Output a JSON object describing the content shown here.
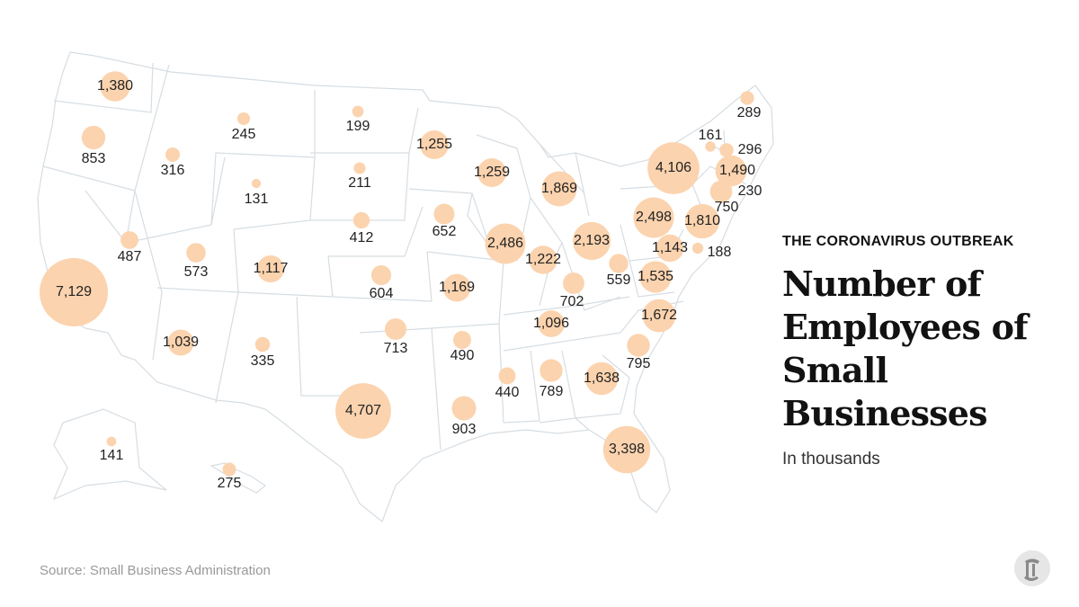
{
  "header": {
    "kicker": "THE CORONAVIRUS OUTBREAK",
    "title": "Number of Employees of Small Businesses",
    "subtitle": "In thousands"
  },
  "footer": {
    "source": "Source: Small Business Administration"
  },
  "colors": {
    "bubble": "#fbd3ae",
    "state_stroke": "#d6dde2",
    "text": "#222222"
  },
  "logo_icon": "nyt-t-logo-icon",
  "chart_data": {
    "type": "bubble-map",
    "title": "Number of Employees of Small Businesses",
    "unit": "In thousands",
    "points": [
      {
        "label": "1,380",
        "value": 1380
      },
      {
        "label": "853",
        "value": 853
      },
      {
        "label": "316",
        "value": 316
      },
      {
        "label": "245",
        "value": 245
      },
      {
        "label": "199",
        "value": 199
      },
      {
        "label": "131",
        "value": 131
      },
      {
        "label": "211",
        "value": 211
      },
      {
        "label": "487",
        "value": 487
      },
      {
        "label": "7,129",
        "value": 7129
      },
      {
        "label": "573",
        "value": 573
      },
      {
        "label": "1,117",
        "value": 1117
      },
      {
        "label": "412",
        "value": 412
      },
      {
        "label": "604",
        "value": 604
      },
      {
        "label": "1,039",
        "value": 1039
      },
      {
        "label": "335",
        "value": 335
      },
      {
        "label": "713",
        "value": 713
      },
      {
        "label": "4,707",
        "value": 4707
      },
      {
        "label": "1,255",
        "value": 1255
      },
      {
        "label": "652",
        "value": 652
      },
      {
        "label": "1,169",
        "value": 1169
      },
      {
        "label": "490",
        "value": 490
      },
      {
        "label": "903",
        "value": 903
      },
      {
        "label": "1,259",
        "value": 1259
      },
      {
        "label": "2,486",
        "value": 2486
      },
      {
        "label": "1,869",
        "value": 1869
      },
      {
        "label": "1,222",
        "value": 1222
      },
      {
        "label": "2,193",
        "value": 2193
      },
      {
        "label": "702",
        "value": 702
      },
      {
        "label": "1,096",
        "value": 1096
      },
      {
        "label": "440",
        "value": 440
      },
      {
        "label": "789",
        "value": 789
      },
      {
        "label": "1,638",
        "value": 1638
      },
      {
        "label": "3,398",
        "value": 3398
      },
      {
        "label": "795",
        "value": 795
      },
      {
        "label": "1,672",
        "value": 1672
      },
      {
        "label": "559",
        "value": 559
      },
      {
        "label": "1,535",
        "value": 1535
      },
      {
        "label": "2,498",
        "value": 2498
      },
      {
        "label": "4,106",
        "value": 4106
      },
      {
        "label": "1,810",
        "value": 1810
      },
      {
        "label": "1,143",
        "value": 1143
      },
      {
        "label": "188",
        "value": 188
      },
      {
        "label": "750",
        "value": 750
      },
      {
        "label": "230",
        "value": 230
      },
      {
        "label": "1,490",
        "value": 1490
      },
      {
        "label": "296",
        "value": 296
      },
      {
        "label": "161",
        "value": 161
      },
      {
        "label": "289",
        "value": 289
      },
      {
        "label": "141",
        "value": 141
      },
      {
        "label": "275",
        "value": 275
      }
    ]
  }
}
